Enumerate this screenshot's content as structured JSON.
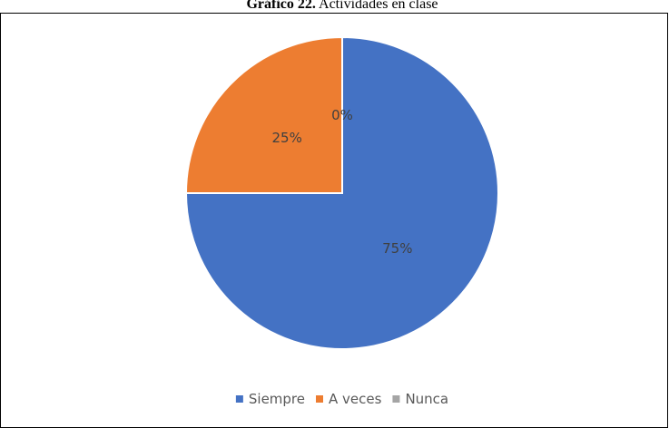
{
  "chart_data": {
    "type": "pie",
    "title_label": "Gráfico 22.",
    "title": "Actividades en clase",
    "categories": [
      "Siempre",
      "A veces",
      "Nunca"
    ],
    "values": [
      75,
      25,
      0
    ],
    "value_labels": [
      "75%",
      "25%",
      "0%"
    ],
    "colors": [
      "#4472c4",
      "#ed7d31",
      "#a5a5a5"
    ],
    "legend": "bottom"
  }
}
